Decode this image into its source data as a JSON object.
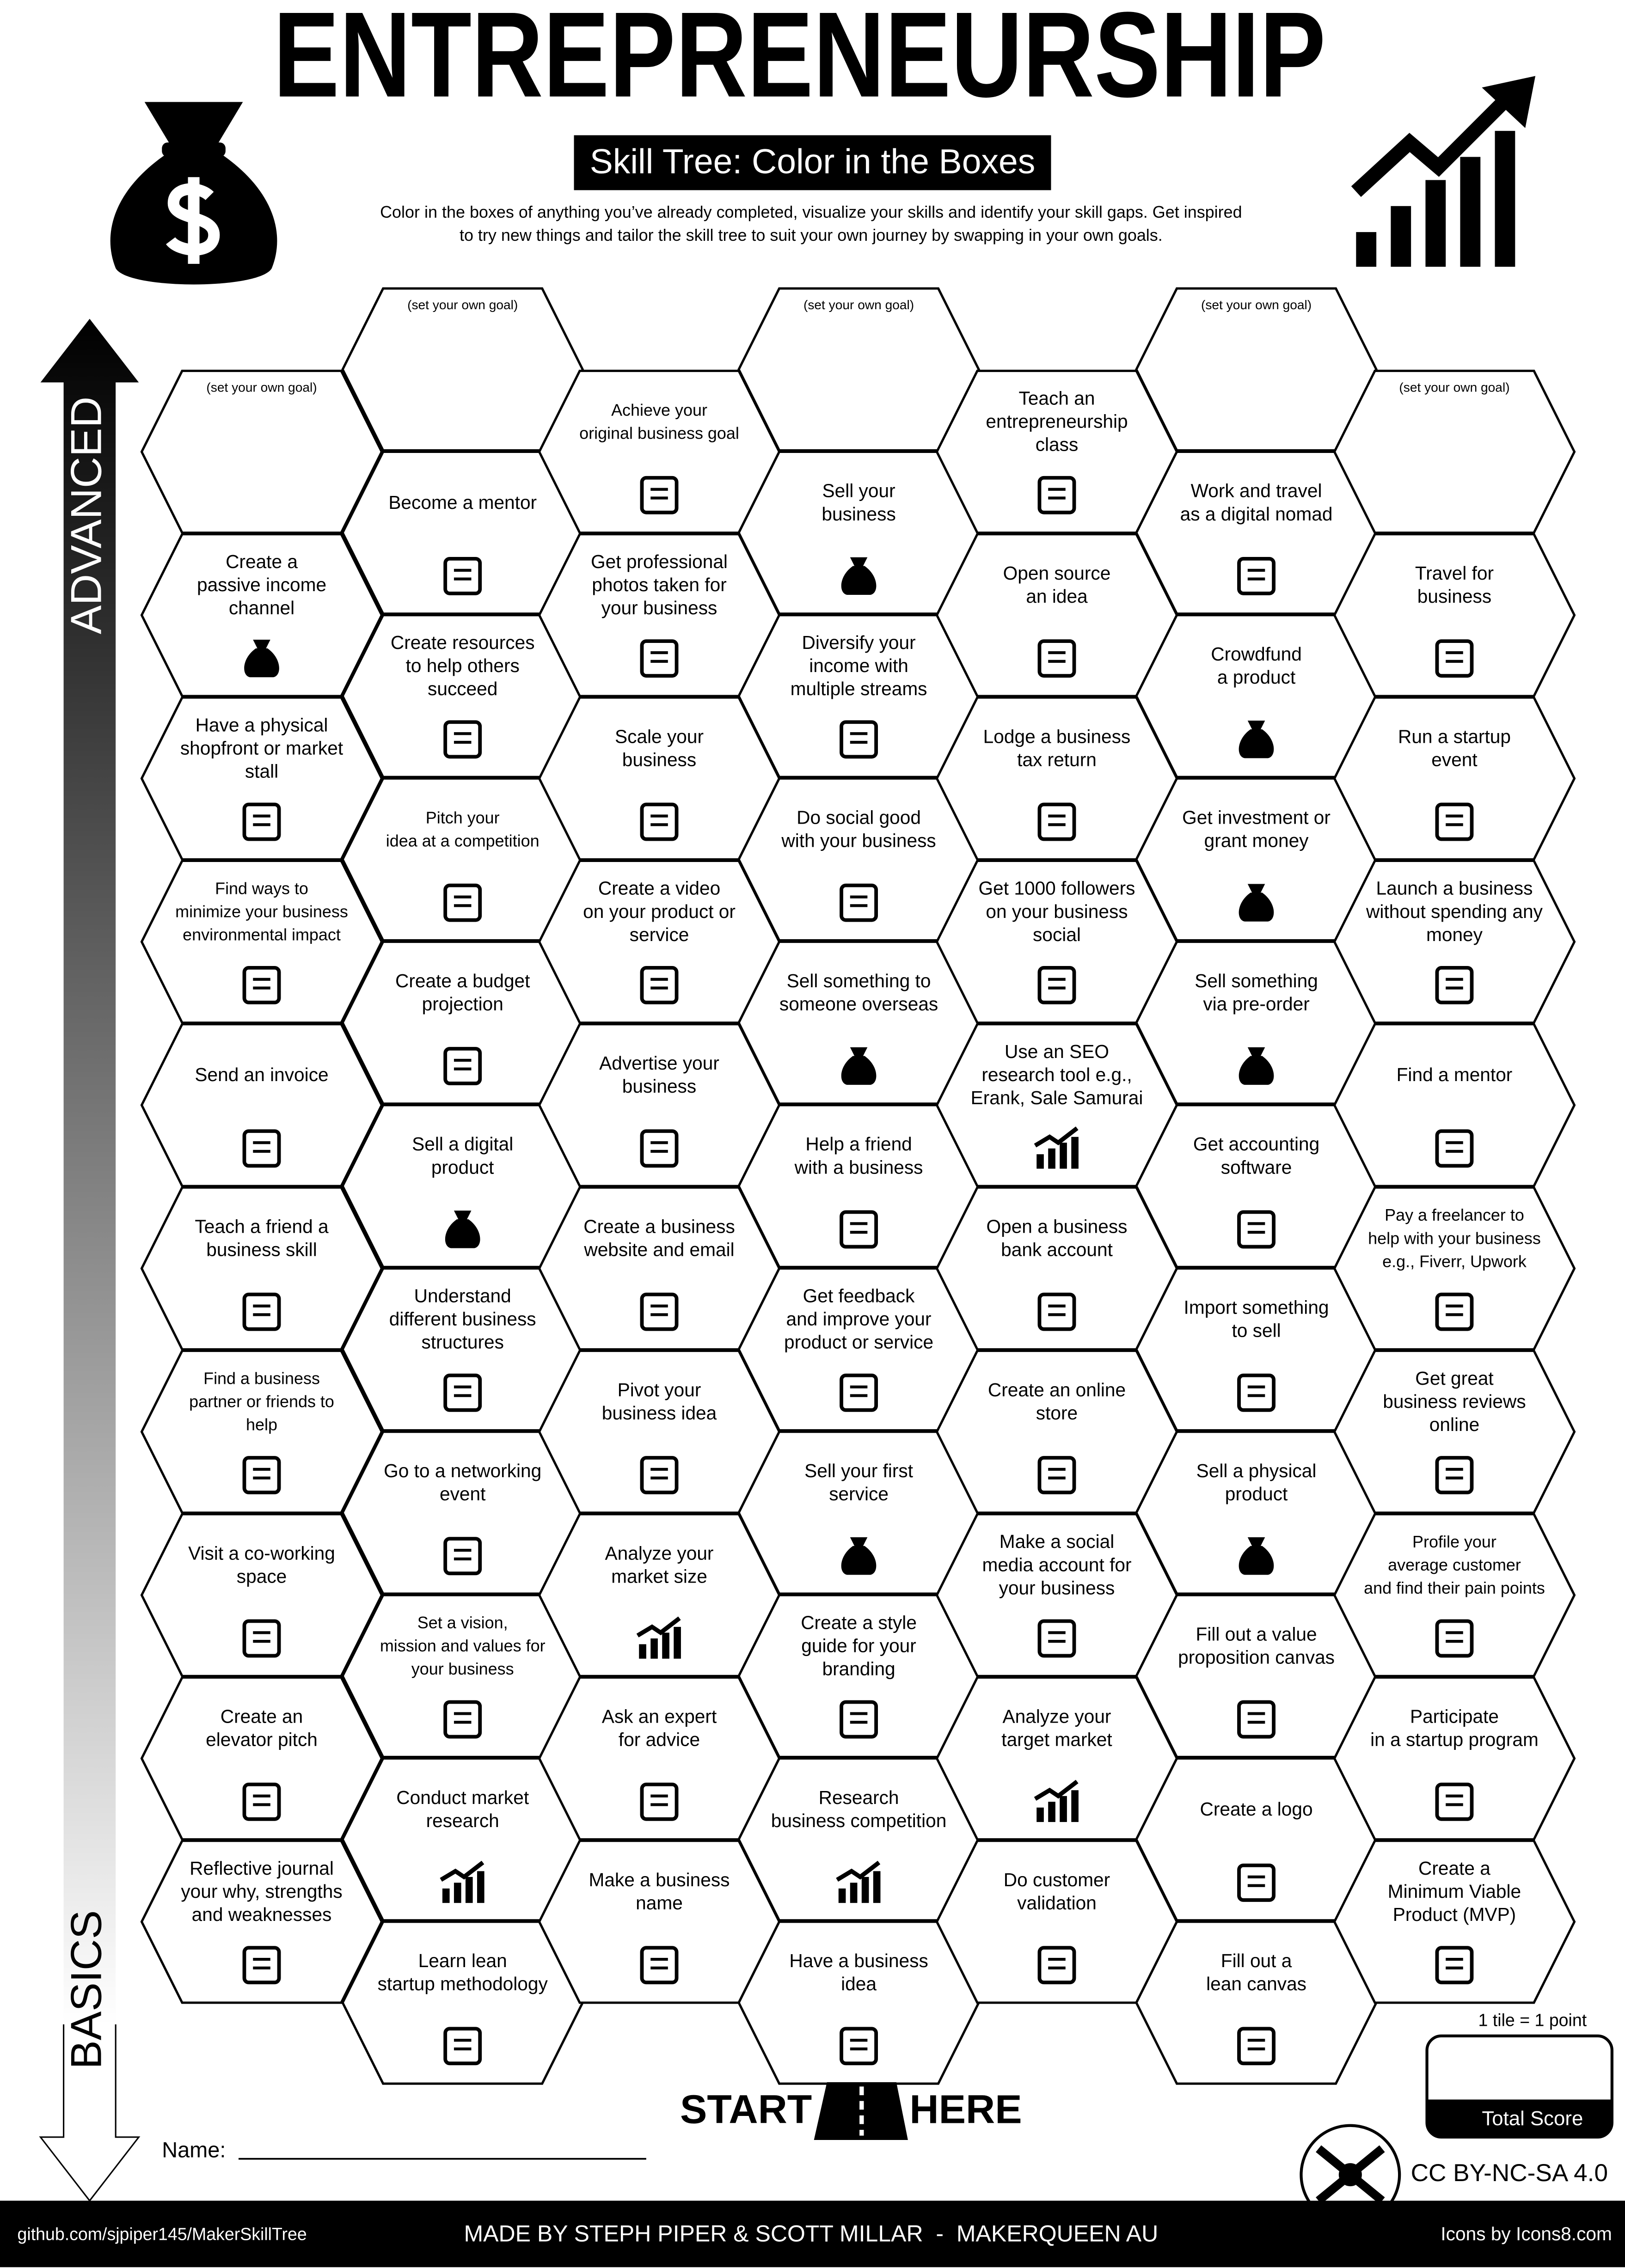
{
  "header": {
    "title": "ENTREPRENEURSHIP",
    "subtitle": "Skill Tree: Color in the Boxes",
    "intro": [
      "Color in the boxes of anything you’ve already completed, visualize your skills and identify your skill gaps.  Get inspired",
      "to try new things and tailor the skill tree to suit your own journey by swapping in your own goals."
    ]
  },
  "axis": {
    "top": "ADVANCED",
    "bottom": "BASICS"
  },
  "tiles": [
    [
      [
        "(set your own goal)"
      ],
      [
        "Create a",
        "passive income",
        "channel"
      ],
      [
        "Have a physical",
        "shopfront or market",
        "stall"
      ],
      [
        "Find ways to",
        "minimize your business",
        "environmental impact"
      ],
      [
        "Send an invoice"
      ],
      [
        "Teach a friend a",
        "business skill"
      ],
      [
        "Find a business",
        "partner or friends to",
        "help"
      ],
      [
        "Visit a co-working",
        "space"
      ],
      [
        "Create an",
        "elevator pitch"
      ],
      [
        "Reflective journal",
        "your why, strengths",
        "and weaknesses"
      ]
    ],
    [
      [
        "(set your own goal)"
      ],
      [
        "Become a mentor"
      ],
      [
        "Create resources",
        "to help others",
        "succeed"
      ],
      [
        "Pitch your",
        "idea at a competition"
      ],
      [
        "Create a budget",
        "projection"
      ],
      [
        "Sell a digital",
        "product"
      ],
      [
        "Understand",
        "different business",
        "structures"
      ],
      [
        "Go to a networking",
        "event"
      ],
      [
        "Set a vision,",
        "mission and values for",
        "your business"
      ],
      [
        "Conduct market",
        "research"
      ],
      [
        "Learn lean",
        "startup methodology"
      ]
    ],
    [
      [
        "Achieve your",
        "original business goal"
      ],
      [
        "Get professional",
        "photos taken for",
        "your business"
      ],
      [
        "Scale your",
        "business"
      ],
      [
        "Create a video",
        "on your product or",
        "service"
      ],
      [
        "Advertise your",
        "business"
      ],
      [
        "Create a business",
        "website and email"
      ],
      [
        "Pivot your",
        "business idea"
      ],
      [
        "Analyze your",
        "market size"
      ],
      [
        "Ask an expert",
        "for advice"
      ],
      [
        "Make a business",
        "name"
      ]
    ],
    [
      [
        "(set your own goal)"
      ],
      [
        "Sell your",
        "business"
      ],
      [
        "Diversify your",
        "income with",
        "multiple streams"
      ],
      [
        "Do social good",
        "with your business"
      ],
      [
        "Sell something to",
        "someone overseas"
      ],
      [
        "Help a friend",
        "with a business"
      ],
      [
        "Get feedback",
        "and improve your",
        "product or service"
      ],
      [
        "Sell your first",
        "service"
      ],
      [
        "Create a style",
        "guide for your",
        "branding"
      ],
      [
        "Research",
        "business competition"
      ],
      [
        "Have a business",
        "idea"
      ]
    ],
    [
      [
        "Teach an",
        "entrepreneurship",
        "class"
      ],
      [
        "Open source",
        "an idea"
      ],
      [
        "Lodge a business",
        "tax return"
      ],
      [
        "Get 1000 followers",
        "on your business",
        "social"
      ],
      [
        "Use an SEO",
        "research tool e.g.,",
        "Erank, Sale Samurai"
      ],
      [
        "Open a business",
        "bank account"
      ],
      [
        "Create an online",
        "store"
      ],
      [
        "Make a social",
        "media account for",
        "your business"
      ],
      [
        "Analyze your",
        "target market"
      ],
      [
        "Do customer",
        "validation"
      ]
    ],
    [
      [
        "(set your own goal)"
      ],
      [
        "Work and travel",
        "as a digital nomad"
      ],
      [
        "Crowdfund",
        "a product"
      ],
      [
        "Get investment or",
        "grant money"
      ],
      [
        "Sell something",
        "via pre-order"
      ],
      [
        "Get accounting",
        "software"
      ],
      [
        "Import something",
        "to sell"
      ],
      [
        "Sell a physical",
        "product"
      ],
      [
        "Fill out a value",
        "proposition canvas"
      ],
      [
        "Create a logo"
      ],
      [
        "Fill out a",
        "lean canvas"
      ]
    ],
    [
      [
        "(set your own goal)"
      ],
      [
        "Travel for",
        "business"
      ],
      [
        "Run a startup",
        "event"
      ],
      [
        "Launch a business",
        "without spending any",
        "money"
      ],
      [
        "Find a mentor"
      ],
      [
        "Pay a freelancer to",
        "help with your business",
        "e.g., Fiverr, Upwork"
      ],
      [
        "Get great",
        "business reviews",
        "online"
      ],
      [
        "Profile your",
        "average customer",
        "and find their pain points"
      ],
      [
        "Participate",
        "in a startup program"
      ],
      [
        "Create a",
        "Minimum Viable",
        "Product (MVP)"
      ]
    ]
  ],
  "start": {
    "left": "START",
    "right": "HERE"
  },
  "name_label": "Name:",
  "score": {
    "note": "1 tile = 1 point",
    "label": "Total Score"
  },
  "license": "CC BY-NC-SA 4.0",
  "footer": {
    "left": "github.com/sjpiper145/MakerSkillTree",
    "center": "MADE BY STEPH PIPER & SCOTT MILLAR  -  MAKERQUEEN AU",
    "right": "Icons by Icons8.com"
  }
}
